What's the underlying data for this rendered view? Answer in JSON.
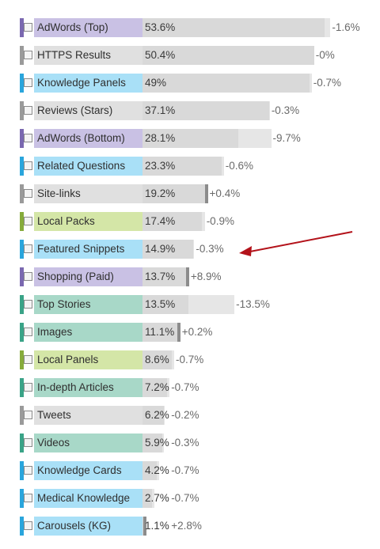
{
  "chart_data": {
    "type": "bar",
    "orientation": "horizontal",
    "value_unit": "%",
    "xlim": [
      0,
      100
    ],
    "rows": [
      {
        "label": "AdWords (Top)",
        "value": 53.6,
        "value_label": "53.6%",
        "change": -1.6,
        "change_label": "-1.6%",
        "color": "#c9c1e4",
        "swatch": "#7a68b0"
      },
      {
        "label": "HTTPS Results",
        "value": 50.4,
        "value_label": "50.4%",
        "change": 0,
        "change_label": "-0%",
        "color": "#e0e0e0",
        "swatch": "#9a9a9a"
      },
      {
        "label": "Knowledge Panels",
        "value": 49,
        "value_label": "49%",
        "change": -0.7,
        "change_label": "-0.7%",
        "color": "#a9e0f7",
        "swatch": "#2aa5dc"
      },
      {
        "label": "Reviews (Stars)",
        "value": 37.1,
        "value_label": "37.1%",
        "change": -0.3,
        "change_label": "-0.3%",
        "color": "#e0e0e0",
        "swatch": "#9a9a9a"
      },
      {
        "label": "AdWords (Bottom)",
        "value": 28.1,
        "value_label": "28.1%",
        "change": -9.7,
        "change_label": "-9.7%",
        "color": "#c9c1e4",
        "swatch": "#7a68b0"
      },
      {
        "label": "Related Questions",
        "value": 23.3,
        "value_label": "23.3%",
        "change": -0.6,
        "change_label": "-0.6%",
        "color": "#a9e0f7",
        "swatch": "#2aa5dc"
      },
      {
        "label": "Site-links",
        "value": 19.2,
        "value_label": "19.2%",
        "change": 0.4,
        "change_label": "+0.4%",
        "color": "#e0e0e0",
        "swatch": "#9a9a9a"
      },
      {
        "label": "Local Packs",
        "value": 17.4,
        "value_label": "17.4%",
        "change": -0.9,
        "change_label": "-0.9%",
        "color": "#d4e6a7",
        "swatch": "#86ab3b"
      },
      {
        "label": "Featured Snippets",
        "value": 14.9,
        "value_label": "14.9%",
        "change": -0.3,
        "change_label": "-0.3%",
        "color": "#a9e0f7",
        "swatch": "#2aa5dc"
      },
      {
        "label": "Shopping (Paid)",
        "value": 13.7,
        "value_label": "13.7%",
        "change": 8.9,
        "change_label": "+8.9%",
        "color": "#c9c1e4",
        "swatch": "#7a68b0"
      },
      {
        "label": "Top Stories",
        "value": 13.5,
        "value_label": "13.5%",
        "change": -13.5,
        "change_label": "-13.5%",
        "color": "#a8d8c8",
        "swatch": "#3aa387"
      },
      {
        "label": "Images",
        "value": 11.1,
        "value_label": "11.1%",
        "change": 0.2,
        "change_label": "+0.2%",
        "color": "#a8d8c8",
        "swatch": "#3aa387"
      },
      {
        "label": "Local Panels",
        "value": 8.6,
        "value_label": "8.6%",
        "change": -0.7,
        "change_label": "-0.7%",
        "color": "#d4e6a7",
        "swatch": "#86ab3b"
      },
      {
        "label": "In-depth Articles",
        "value": 7.2,
        "value_label": "7.2%",
        "change": -0.7,
        "change_label": "-0.7%",
        "color": "#a8d8c8",
        "swatch": "#3aa387"
      },
      {
        "label": "Tweets",
        "value": 6.2,
        "value_label": "6.2%",
        "change": -0.2,
        "change_label": "-0.2%",
        "color": "#e0e0e0",
        "swatch": "#9a9a9a"
      },
      {
        "label": "Videos",
        "value": 5.9,
        "value_label": "5.9%",
        "change": -0.3,
        "change_label": "-0.3%",
        "color": "#a8d8c8",
        "swatch": "#3aa387"
      },
      {
        "label": "Knowledge Cards",
        "value": 4.2,
        "value_label": "4.2%",
        "change": -0.7,
        "change_label": "-0.7%",
        "color": "#a9e0f7",
        "swatch": "#2aa5dc"
      },
      {
        "label": "Medical Knowledge",
        "value": 2.7,
        "value_label": "2.7%",
        "change": -0.7,
        "change_label": "-0.7%",
        "color": "#a9e0f7",
        "swatch": "#2aa5dc"
      },
      {
        "label": "Carousels (KG)",
        "value": 1.1,
        "value_label": "1.1%",
        "change": 2.8,
        "change_label": "+2.8%",
        "color": "#a9e0f7",
        "swatch": "#2aa5dc"
      }
    ],
    "annotation": {
      "type": "arrow",
      "points_to": "Featured Snippets",
      "color": "#b3121a"
    }
  }
}
